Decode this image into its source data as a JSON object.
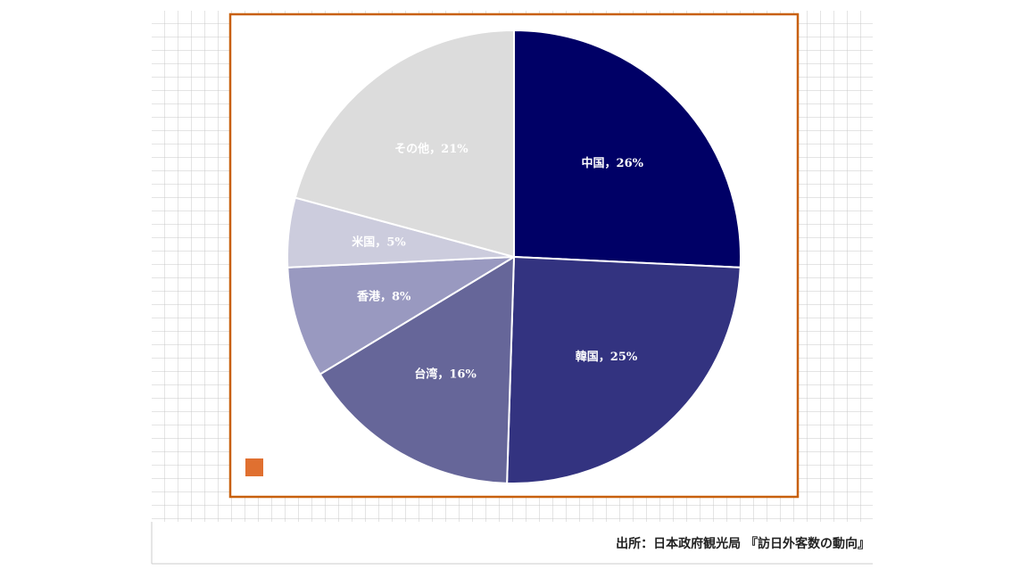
{
  "chart_data": {
    "type": "pie",
    "categories": [
      "中国",
      "韓国",
      "台湾",
      "香港",
      "米国",
      "その他"
    ],
    "values": [
      26,
      25,
      16,
      8,
      5,
      21
    ],
    "value_labels": [
      "26%",
      "25%",
      "16%",
      "8%",
      "5%",
      "21%"
    ],
    "label_separator": "，",
    "colors": [
      "#000066",
      "#333380",
      "#666699",
      "#9999c0",
      "#ccccdd",
      "#dcdcdc"
    ],
    "source": "出所：日本政府観光局 『訪日外客数の動向』"
  }
}
